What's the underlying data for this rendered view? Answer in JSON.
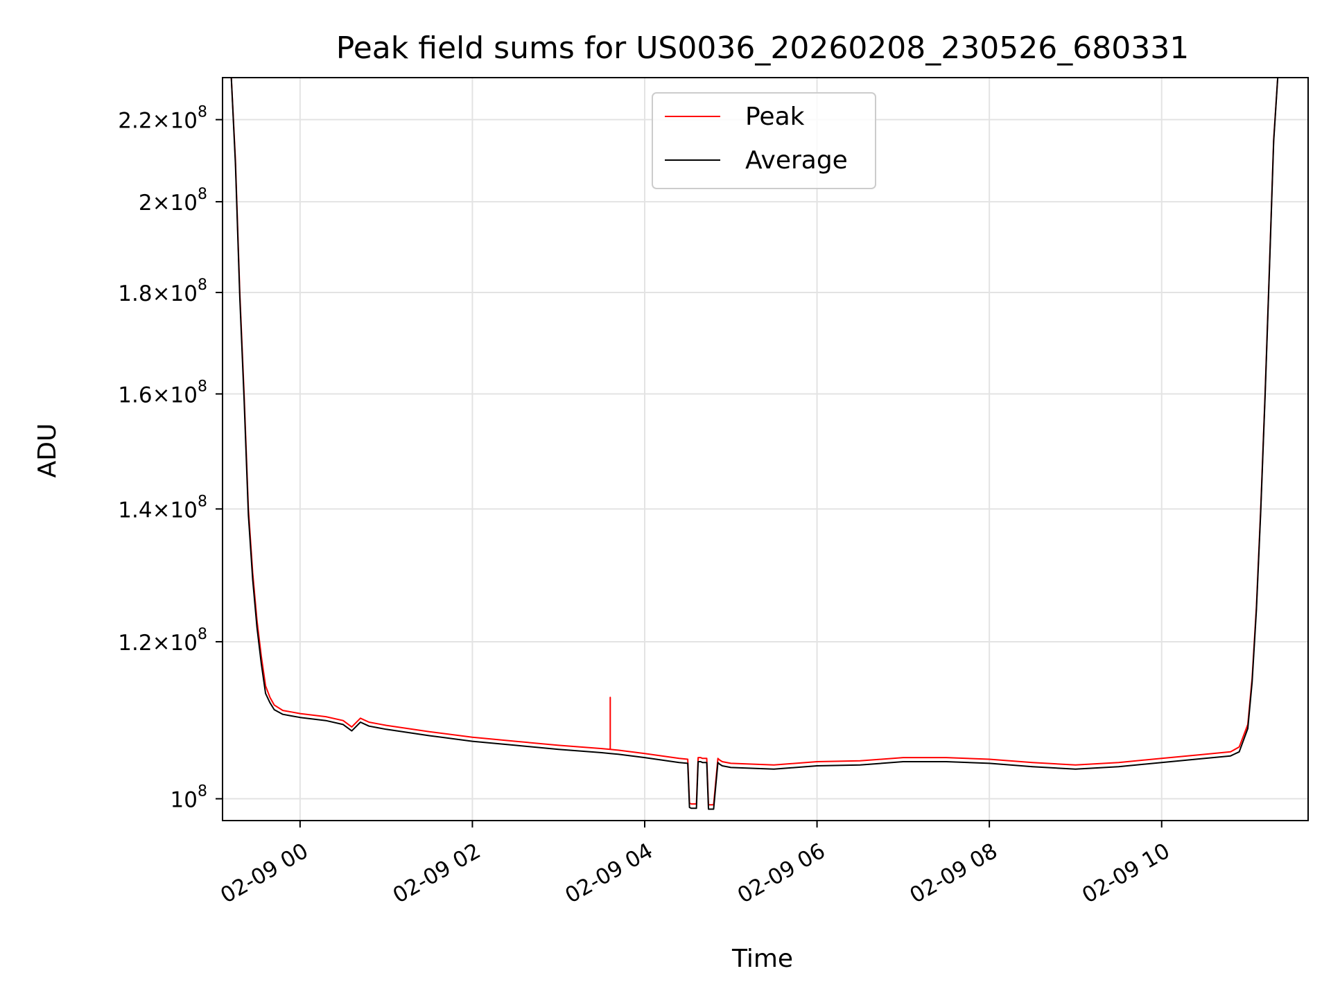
{
  "chart_data": {
    "type": "line",
    "title": "Peak field sums for US0036_20260208_230526_680331",
    "xlabel": "Time",
    "ylabel": "ADU",
    "yscale": "log",
    "ylim": [
      97500000,
      231000000
    ],
    "xlim_hours_from_02_09_00": [
      -0.9,
      11.7
    ],
    "grid": true,
    "legend": {
      "location": "upper center",
      "entries": [
        {
          "name": "Peak",
          "color": "#ff0000"
        },
        {
          "name": "Average",
          "color": "#000000"
        }
      ]
    },
    "x_ticks": [
      {
        "value": 0,
        "label": "02-09 00"
      },
      {
        "value": 2,
        "label": "02-09 02"
      },
      {
        "value": 4,
        "label": "02-09 04"
      },
      {
        "value": 6,
        "label": "02-09 06"
      },
      {
        "value": 8,
        "label": "02-09 08"
      },
      {
        "value": 10,
        "label": "02-09 10"
      }
    ],
    "y_ticks": [
      {
        "value": 100000000,
        "mantissa": "",
        "exponent": "8",
        "label": "10^8"
      },
      {
        "value": 120000000,
        "mantissa": "1.2",
        "exponent": "8",
        "label": "1.2×10^8"
      },
      {
        "value": 140000000,
        "mantissa": "1.4",
        "exponent": "8",
        "label": "1.4×10^8"
      },
      {
        "value": 160000000,
        "mantissa": "1.6",
        "exponent": "8",
        "label": "1.6×10^8"
      },
      {
        "value": 180000000,
        "mantissa": "1.8",
        "exponent": "8",
        "label": "1.8×10^8"
      },
      {
        "value": 200000000,
        "mantissa": "2",
        "exponent": "8",
        "label": "2×10^8"
      },
      {
        "value": 220000000,
        "mantissa": "2.2",
        "exponent": "8",
        "label": "2.2×10^8"
      }
    ],
    "series": [
      {
        "name": "Peak",
        "color": "#ff0000",
        "x_hours": [
          -0.8,
          -0.75,
          -0.7,
          -0.65,
          -0.6,
          -0.55,
          -0.5,
          -0.45,
          -0.4,
          -0.35,
          -0.3,
          -0.2,
          -0.1,
          0.0,
          0.3,
          0.5,
          0.6,
          0.7,
          0.8,
          0.9,
          1.0,
          1.5,
          2.0,
          2.5,
          3.0,
          3.5,
          3.6,
          3.6,
          3.6,
          3.7,
          4.0,
          4.4,
          4.5,
          4.52,
          4.54,
          4.6,
          4.62,
          4.65,
          4.67,
          4.72,
          4.74,
          4.77,
          4.8,
          4.85,
          4.87,
          4.9,
          5.0,
          5.5,
          6.0,
          6.5,
          7.0,
          7.5,
          8.0,
          8.5,
          9.0,
          9.5,
          10.0,
          10.5,
          10.8,
          10.9,
          11.0,
          11.05,
          11.1,
          11.15,
          11.2,
          11.25,
          11.3,
          11.35,
          11.4,
          11.45,
          11.5
        ],
        "y": [
          232000000,
          210000000,
          180000000,
          160000000,
          140000000,
          130000000,
          123000000,
          118000000,
          114000000,
          112500000,
          111500000,
          110800000,
          110600000,
          110400000,
          110000000,
          109500000,
          108700000,
          109800000,
          109300000,
          109100000,
          108900000,
          108100000,
          107400000,
          106900000,
          106400000,
          106000000,
          105900000,
          112500000,
          105900000,
          105800000,
          105400000,
          104800000,
          104700000,
          99500000,
          99400000,
          99400000,
          104900000,
          104900000,
          104800000,
          104800000,
          99300000,
          99300000,
          99300000,
          104800000,
          104600000,
          104400000,
          104200000,
          104000000,
          104400000,
          104500000,
          104900000,
          104900000,
          104700000,
          104300000,
          104000000,
          104300000,
          104800000,
          105300000,
          105600000,
          106200000,
          109000000,
          115000000,
          125000000,
          140000000,
          160000000,
          185000000,
          215000000,
          232000000,
          232000000,
          232000000,
          232000000
        ]
      },
      {
        "name": "Average",
        "color": "#000000",
        "x_hours": [
          -0.8,
          -0.75,
          -0.7,
          -0.65,
          -0.6,
          -0.55,
          -0.5,
          -0.45,
          -0.4,
          -0.35,
          -0.3,
          -0.2,
          -0.1,
          0.0,
          0.3,
          0.5,
          0.6,
          0.7,
          0.8,
          0.9,
          1.0,
          1.5,
          2.0,
          2.5,
          3.0,
          3.5,
          3.6,
          3.7,
          4.0,
          4.4,
          4.5,
          4.52,
          4.54,
          4.6,
          4.62,
          4.65,
          4.67,
          4.72,
          4.74,
          4.77,
          4.8,
          4.85,
          4.87,
          4.9,
          5.0,
          5.5,
          6.0,
          6.5,
          7.0,
          7.5,
          8.0,
          8.5,
          9.0,
          9.5,
          10.0,
          10.5,
          10.8,
          10.9,
          11.0,
          11.05,
          11.1,
          11.15,
          11.2,
          11.25,
          11.3,
          11.35,
          11.4,
          11.45,
          11.5
        ],
        "y": [
          232000000,
          209000000,
          179000000,
          159000000,
          139000000,
          129000000,
          122000000,
          117000000,
          113000000,
          111800000,
          110900000,
          110300000,
          110100000,
          109900000,
          109500000,
          109000000,
          108200000,
          109300000,
          108800000,
          108600000,
          108400000,
          107600000,
          106900000,
          106400000,
          105900000,
          105500000,
          105400000,
          105300000,
          104900000,
          104300000,
          104200000,
          99000000,
          98900000,
          98900000,
          104400000,
          104400000,
          104300000,
          104300000,
          98800000,
          98800000,
          98800000,
          104300000,
          104100000,
          103900000,
          103700000,
          103500000,
          103900000,
          104000000,
          104400000,
          104400000,
          104200000,
          103800000,
          103500000,
          103800000,
          104300000,
          104800000,
          105100000,
          105600000,
          108500000,
          114500000,
          124500000,
          139500000,
          159500000,
          184500000,
          214500000,
          232000000,
          232000000,
          232000000,
          232000000
        ]
      }
    ],
    "annotations": [
      {
        "description": "Narrow spike in Peak series",
        "x_hours": 3.6,
        "y": 112500000
      },
      {
        "description": "Two brief dips in both series",
        "x_hours_ranges": [
          [
            4.52,
            4.62
          ],
          [
            4.74,
            4.85
          ]
        ],
        "y": 99300000
      }
    ]
  }
}
